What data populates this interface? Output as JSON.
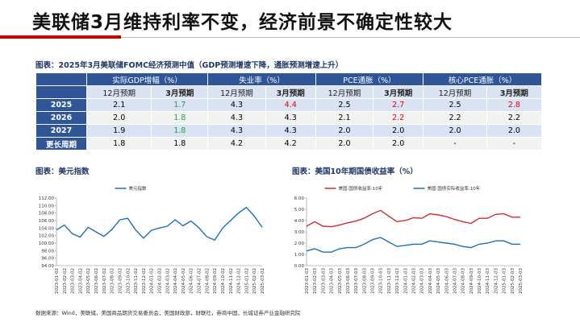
{
  "header": {
    "title": "美联储3月维持利率不变，经济前景不确定性较大"
  },
  "table": {
    "caption": "图表：2025年3月美联储FOMC经济预测中值（GDP预测增速下降，通胀预测增速上升）",
    "groups": [
      "实际GDP增幅（%）",
      "失业率（%）",
      "PCE通胀（%）",
      "核心PCE通胀（%）"
    ],
    "subheaders": [
      "12月预期",
      "3月预期",
      "12月预期",
      "3月预期",
      "12月预期",
      "3月预期",
      "12月预期",
      "3月预期"
    ],
    "rows": [
      {
        "label": "2025",
        "cells": [
          {
            "text": "2.1"
          },
          {
            "text": "1.7",
            "color": "#1e9e48"
          },
          {
            "text": "4.3"
          },
          {
            "text": "4.4",
            "color": "#e00000"
          },
          {
            "text": "2.5"
          },
          {
            "text": "2.7",
            "color": "#e00000"
          },
          {
            "text": "2.5"
          },
          {
            "text": "2.8",
            "color": "#e00000"
          }
        ]
      },
      {
        "label": "2026",
        "cells": [
          {
            "text": "2.0"
          },
          {
            "text": "1.8",
            "color": "#1e9e48"
          },
          {
            "text": "4.3"
          },
          {
            "text": "4.3"
          },
          {
            "text": "2.1"
          },
          {
            "text": "2.2",
            "color": "#e00000"
          },
          {
            "text": "2.2"
          },
          {
            "text": "2.2"
          }
        ]
      },
      {
        "label": "2027",
        "cells": [
          {
            "text": "1.9"
          },
          {
            "text": "1.8",
            "color": "#1e9e48"
          },
          {
            "text": "4.3"
          },
          {
            "text": "4.3"
          },
          {
            "text": "2.0"
          },
          {
            "text": "2.0"
          },
          {
            "text": "2.0"
          },
          {
            "text": "2.0"
          }
        ]
      },
      {
        "label": "更长周期",
        "cells": [
          {
            "text": "1.8"
          },
          {
            "text": "1.8"
          },
          {
            "text": "4.2"
          },
          {
            "text": "4.2"
          },
          {
            "text": "2.0"
          },
          {
            "text": "2.0"
          },
          {
            "text": "-"
          },
          {
            "text": "-"
          }
        ]
      }
    ]
  },
  "chart_data": [
    {
      "type": "line",
      "title": "图表：美元指数",
      "categories": [
        "2023-01-02",
        "2023-02-02",
        "2023-03-02",
        "2023-04-02",
        "2023-05-02",
        "2023-06-02",
        "2023-07-02",
        "2023-08-02",
        "2023-09-02",
        "2023-10-02",
        "2023-11-02",
        "2023-12-02",
        "2024-01-02",
        "2024-02-02",
        "2024-03-02",
        "2024-04-02",
        "2024-05-02",
        "2024-06-02",
        "2024-07-02",
        "2024-08-02",
        "2024-09-02",
        "2024-10-02",
        "2024-11-02",
        "2024-12-02",
        "2025-01-02",
        "2025-02-02",
        "2025-03-02"
      ],
      "series": [
        {
          "name": "美元指数",
          "color": "#1f6fb5",
          "values": [
            103.5,
            104.8,
            102.5,
            101.6,
            104.2,
            103.0,
            101.8,
            103.6,
            106.2,
            106.6,
            103.5,
            101.3,
            103.4,
            104.0,
            104.5,
            106.2,
            104.6,
            105.9,
            104.1,
            101.7,
            100.8,
            104.0,
            106.0,
            108.0,
            109.5,
            107.2,
            104.2
          ]
        }
      ],
      "ylim": [
        94,
        112
      ],
      "yticks": [
        {
          "value": 94,
          "label": "94.00"
        },
        {
          "value": 96,
          "label": "96.00"
        },
        {
          "value": 98,
          "label": "98.00"
        },
        {
          "value": 100,
          "label": "100.00"
        },
        {
          "value": 102,
          "label": "102.00"
        },
        {
          "value": 104,
          "label": "104.00"
        },
        {
          "value": 106,
          "label": "106.00"
        },
        {
          "value": 108,
          "label": "108.00"
        },
        {
          "value": 110,
          "label": "110.00"
        },
        {
          "value": 112,
          "label": "112.00"
        }
      ],
      "legend": "top"
    },
    {
      "type": "line",
      "title": "图表：美国10年期国债收益率（%）",
      "categories": [
        "2023-01-03",
        "2023-02-03",
        "2023-03-03",
        "2023-04-03",
        "2023-05-03",
        "2023-06-03",
        "2023-07-03",
        "2023-08-03",
        "2023-09-03",
        "2023-10-03",
        "2023-11-03",
        "2023-12-03",
        "2024-01-03",
        "2024-02-03",
        "2024-03-03",
        "2024-04-03",
        "2024-05-03",
        "2024-06-03",
        "2024-07-03",
        "2024-08-03",
        "2024-09-03",
        "2024-10-03",
        "2024-11-03",
        "2024-12-03",
        "2025-01-03",
        "2025-02-03",
        "2025-03-03"
      ],
      "series": [
        {
          "name": "美国:国债收益率:10年",
          "color": "#d62b2b",
          "values": [
            3.5,
            3.9,
            3.5,
            3.45,
            3.6,
            3.8,
            3.95,
            4.2,
            4.6,
            4.9,
            4.4,
            3.9,
            4.0,
            4.25,
            4.2,
            4.6,
            4.5,
            4.35,
            4.1,
            3.9,
            3.75,
            4.2,
            4.2,
            4.55,
            4.6,
            4.3,
            4.3
          ]
        },
        {
          "name": "美国:国债实际收益率:10年",
          "color": "#1f6fb5",
          "values": [
            1.3,
            1.5,
            1.2,
            1.2,
            1.5,
            1.6,
            1.6,
            1.9,
            2.3,
            2.5,
            2.1,
            1.7,
            1.8,
            1.9,
            1.9,
            2.2,
            2.1,
            2.0,
            1.9,
            1.7,
            1.6,
            1.9,
            2.0,
            2.2,
            2.2,
            1.9,
            1.9
          ]
        }
      ],
      "ylim": [
        0,
        6
      ],
      "yticks": [
        {
          "value": 0,
          "label": "0.00"
        },
        {
          "value": 1,
          "label": "1.00"
        },
        {
          "value": 2,
          "label": "2.00"
        },
        {
          "value": 3,
          "label": "3.00"
        },
        {
          "value": 4,
          "label": "4.00"
        },
        {
          "value": 5,
          "label": "5.00"
        },
        {
          "value": 6,
          "label": "6.00"
        }
      ],
      "legend": "top"
    }
  ],
  "source": "数据来源：Wind，美联储，美国商品期货交易委员会，美国财政部，财联社，券商中国，长城证券产业金融研究院"
}
